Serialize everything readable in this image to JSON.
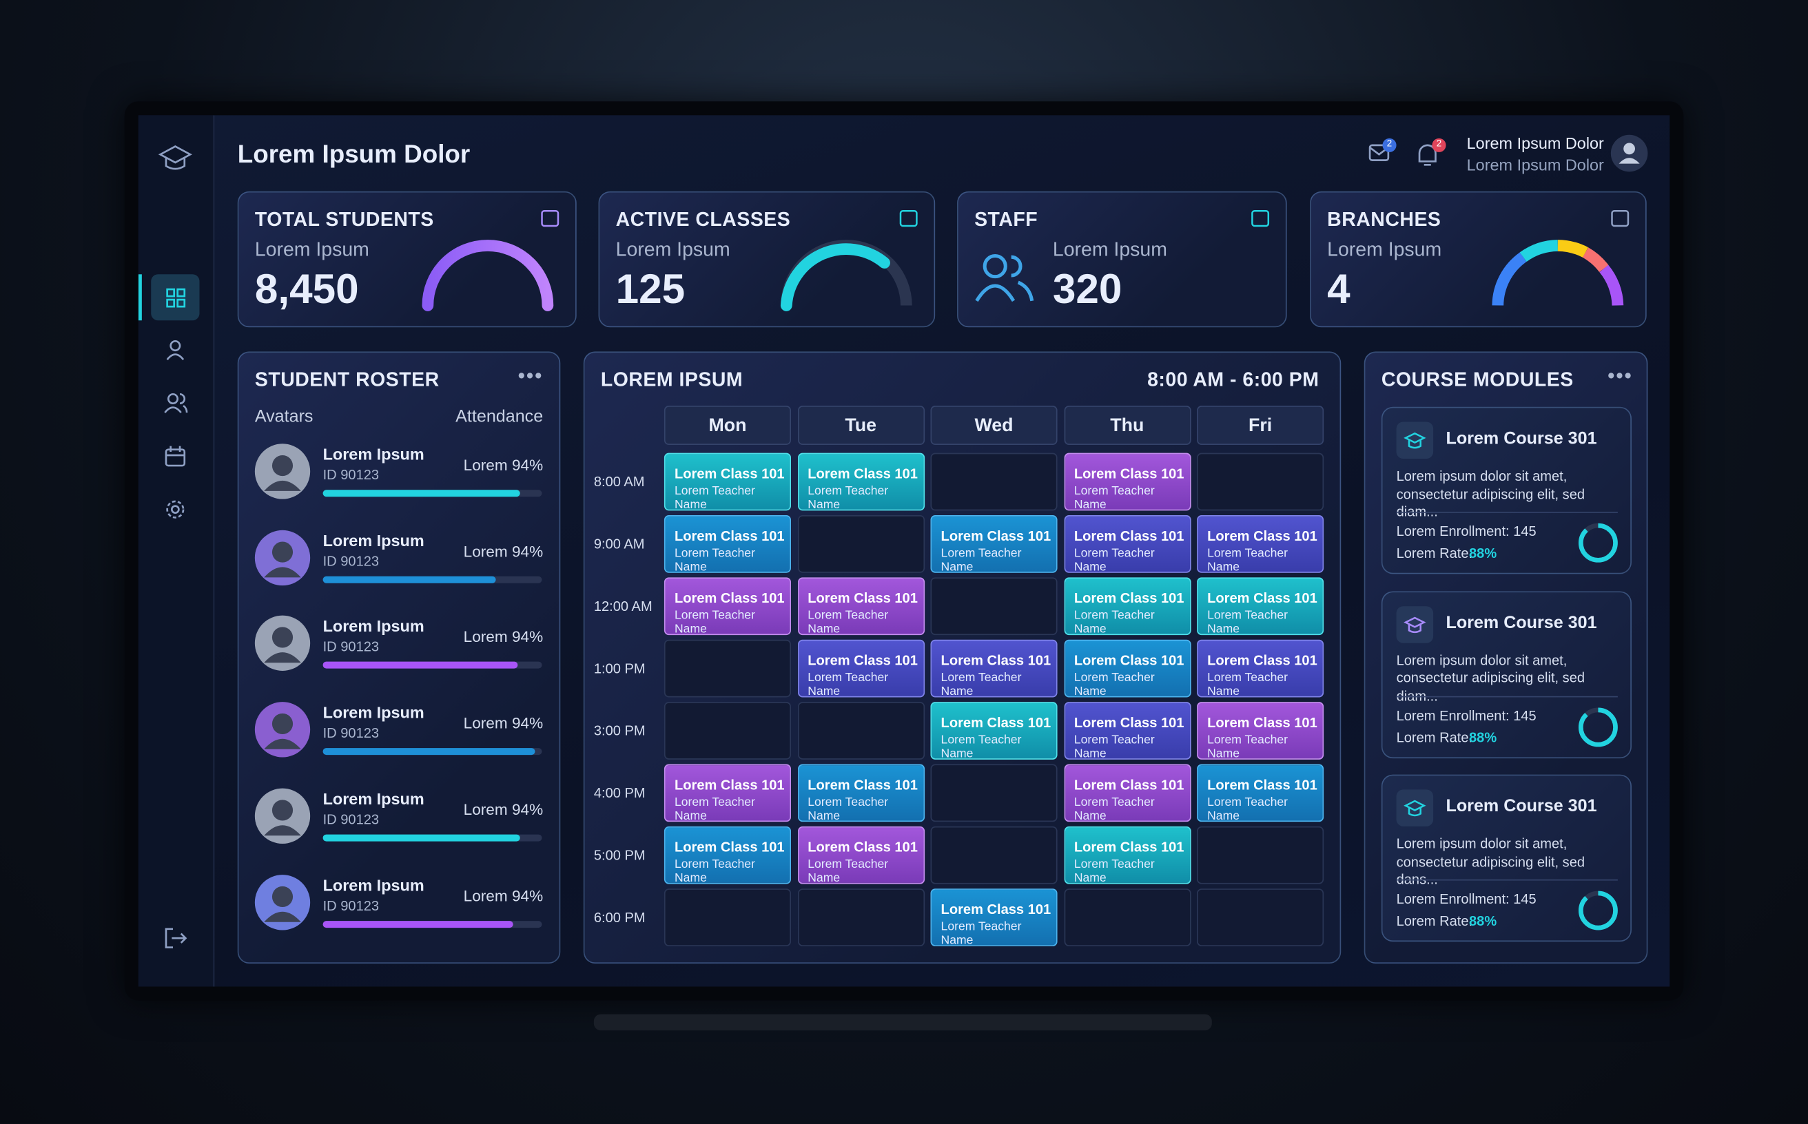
{
  "header": {
    "title": "Lorem Ipsum Dolor",
    "mail_badge": "2",
    "bell_badge": "2",
    "user_name": "Lorem Ipsum Dolor",
    "user_role": "Lorem Ipsum Dolor"
  },
  "stats": [
    {
      "label": "TOTAL STUDENTS",
      "sub": "Lorem Ipsum",
      "value": "8,450"
    },
    {
      "label": "ACTIVE CLASSES",
      "sub": "Lorem Ipsum",
      "value": "125"
    },
    {
      "label": "STAFF",
      "sub": "Lorem Ipsum",
      "value": "320"
    },
    {
      "label": "BRANCHES",
      "sub": "Lorem Ipsum",
      "value": "4"
    }
  ],
  "roster": {
    "title": "STUDENT ROSTER",
    "col_left": "Avatars",
    "col_right": "Attendance",
    "students": [
      {
        "name": "Lorem Ipsum",
        "id": "ID 90123",
        "attendance": "Lorem 94%"
      },
      {
        "name": "Lorem Ipsum",
        "id": "ID 90123",
        "attendance": "Lorem 94%"
      },
      {
        "name": "Lorem Ipsum",
        "id": "ID 90123",
        "attendance": "Lorem 94%"
      },
      {
        "name": "Lorem Ipsum",
        "id": "ID 90123",
        "attendance": "Lorem 94%"
      },
      {
        "name": "Lorem Ipsum",
        "id": "ID 90123",
        "attendance": "Lorem 94%"
      },
      {
        "name": "Lorem Ipsum",
        "id": "ID 90123",
        "attendance": "Lorem 94%"
      }
    ]
  },
  "schedule": {
    "title": "LOREM IPSUM",
    "range": "8:00 AM - 6:00 PM",
    "days": [
      "Mon",
      "Tue",
      "Wed",
      "Thu",
      "Fri"
    ],
    "times": [
      "8:00 AM",
      "9:00 AM",
      "12:00 AM",
      "1:00 PM",
      "3:00 PM",
      "4:00 PM",
      "5:00 PM",
      "6:00 PM"
    ],
    "rows": [
      [
        {
          "class": "Lorem Class 101",
          "teacher": "Lorem Teacher Name",
          "color": "teal"
        },
        {
          "class": "Lorem Class 101",
          "teacher": "Lorem Teacher Name",
          "color": "teal"
        },
        null,
        {
          "class": "Lorem Class 101",
          "teacher": "Lorem Teacher Name",
          "color": "purple"
        },
        null
      ],
      [
        {
          "class": "Lorem Class 101",
          "teacher": "Lorem Teacher Name",
          "color": "blue"
        },
        null,
        {
          "class": "Lorem Class 101",
          "teacher": "Lorem Teacher Name",
          "color": "blue"
        },
        {
          "class": "Lorem Class 101",
          "teacher": "Lorem Teacher Name",
          "color": "indigo"
        },
        {
          "class": "Lorem Class 101",
          "teacher": "Lorem Teacher Name",
          "color": "indigo"
        }
      ],
      [
        {
          "class": "Lorem Class 101",
          "teacher": "Lorem Teacher Name",
          "color": "purple"
        },
        {
          "class": "Lorem Class 101",
          "teacher": "Lorem Teacher Name",
          "color": "purple"
        },
        null,
        {
          "class": "Lorem Class 101",
          "teacher": "Lorem Teacher Name",
          "color": "teal"
        },
        {
          "class": "Lorem Class 101",
          "teacher": "Lorem Teacher Name",
          "color": "teal"
        }
      ],
      [
        null,
        {
          "class": "Lorem Class 101",
          "teacher": "Lorem Teacher Name",
          "color": "indigo"
        },
        {
          "class": "Lorem Class 101",
          "teacher": "Lorem Teacher Name",
          "color": "indigo"
        },
        {
          "class": "Lorem Class 101",
          "teacher": "Lorem Teacher Name",
          "color": "blue"
        },
        {
          "class": "Lorem Class 101",
          "teacher": "Lorem Teacher Name",
          "color": "indigo"
        }
      ],
      [
        null,
        null,
        {
          "class": "Lorem Class 101",
          "teacher": "Lorem Teacher Name",
          "color": "teal"
        },
        {
          "class": "Lorem Class 101",
          "teacher": "Lorem Teacher Name",
          "color": "indigo"
        },
        {
          "class": "Lorem Class 101",
          "teacher": "Lorem Teacher Name",
          "color": "purple"
        }
      ],
      [
        {
          "class": "Lorem Class 101",
          "teacher": "Lorem Teacher Name",
          "color": "purple"
        },
        {
          "class": "Lorem Class 101",
          "teacher": "Lorem Teacher Name",
          "color": "blue"
        },
        null,
        {
          "class": "Lorem Class 101",
          "teacher": "Lorem Teacher Name",
          "color": "purple"
        },
        {
          "class": "Lorem Class 101",
          "teacher": "Lorem Teacher Name",
          "color": "blue"
        }
      ],
      [
        {
          "class": "Lorem Class 101",
          "teacher": "Lorem Teacher Name",
          "color": "blue"
        },
        {
          "class": "Lorem Class 101",
          "teacher": "Lorem Teacher Name",
          "color": "purple"
        },
        null,
        {
          "class": "Lorem Class 101",
          "teacher": "Lorem Teacher Name",
          "color": "teal"
        },
        null
      ],
      [
        null,
        null,
        {
          "class": "Lorem Class 101",
          "teacher": "Lorem Teacher Name",
          "color": "blue"
        },
        null,
        null
      ]
    ]
  },
  "courses": {
    "title": "COURSE MODULES",
    "items": [
      {
        "name": "Lorem Course 301",
        "description": "Lorem ipsum dolor sit amet, consectetur adipiscing elit, sed diam...",
        "enrollment": "Lorem Enrollment: 145",
        "rate_label": "Lorem Rate:",
        "rate": "88%"
      },
      {
        "name": "Lorem Course 301",
        "description": "Lorem ipsum dolor sit amet, consectetur adipiscing elit, sed diam...",
        "enrollment": "Lorem Enrollment: 145",
        "rate_label": "Lorem Rate:",
        "rate": "88%"
      },
      {
        "name": "Lorem Course 301",
        "description": "Lorem ipsum dolor sit amet, consectetur adipiscing elit, sed dans...",
        "enrollment": "Lorem Enrollment: 145",
        "rate_label": "Lorem Rate:",
        "rate": "88%"
      }
    ]
  }
}
